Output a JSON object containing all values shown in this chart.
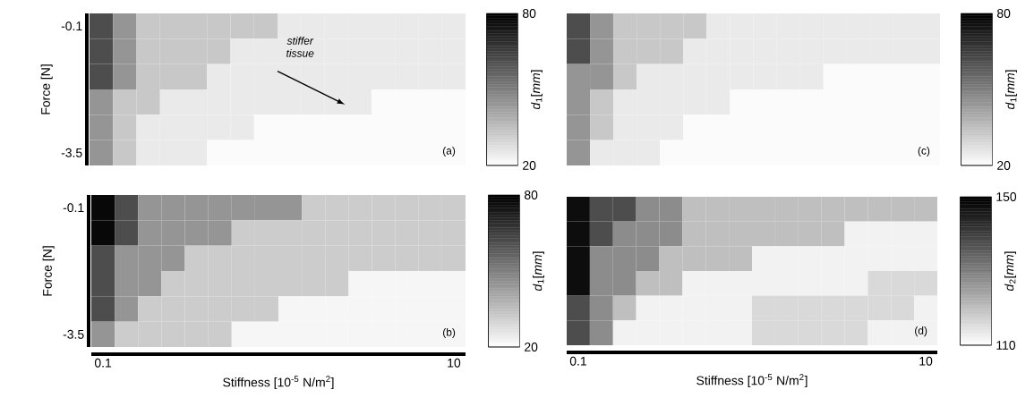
{
  "chart_data": [
    {
      "type": "heatmap",
      "ylabel": "Force [N]",
      "clabel": "*d*$_{1}$[*mm*]",
      "tick_labels": "y",
      "categories": [
        "0.1",
        null,
        null,
        null,
        null,
        null,
        null,
        null,
        null,
        null,
        null,
        null,
        null,
        null,
        null,
        "10"
      ],
      "y_categories": [
        "-0.1",
        null,
        null,
        null,
        null,
        "-3.5"
      ],
      "cells": [
        [
          62,
          45,
          33,
          33,
          33,
          33,
          33,
          33,
          25,
          25,
          25,
          25,
          25,
          25,
          25,
          25
        ],
        [
          62,
          45,
          33,
          33,
          33,
          33,
          25,
          25,
          25,
          25,
          25,
          25,
          25,
          25,
          25,
          25
        ],
        [
          62,
          45,
          33,
          33,
          33,
          25,
          25,
          25,
          25,
          25,
          25,
          25,
          25,
          25,
          25,
          25
        ],
        [
          45,
          33,
          33,
          25,
          25,
          25,
          25,
          25,
          25,
          25,
          25,
          25,
          21,
          21,
          21,
          21
        ],
        [
          45,
          33,
          25,
          25,
          25,
          25,
          25,
          21,
          21,
          21,
          21,
          21,
          21,
          21,
          21,
          21
        ],
        [
          45,
          33,
          25,
          25,
          25,
          21,
          21,
          21,
          21,
          21,
          21,
          21,
          21,
          21,
          21,
          21
        ]
      ],
      "clim": [
        20,
        80
      ],
      "cticks": [
        20,
        80
      ],
      "annotations": [
        "stiffer tissue",
        "(a)"
      ]
    },
    {
      "type": "heatmap",
      "clabel": "*d*$_{1}$[*mm*]",
      "tick_labels": false,
      "categories": [
        "0.1",
        null,
        null,
        null,
        null,
        null,
        null,
        null,
        null,
        null,
        null,
        null,
        null,
        null,
        null,
        "10"
      ],
      "y_categories": [
        "-0.1",
        null,
        null,
        null,
        null,
        "-3.5"
      ],
      "cells": [
        [
          62,
          45,
          33,
          33,
          33,
          33,
          25,
          25,
          25,
          25,
          25,
          25,
          25,
          25,
          25,
          25
        ],
        [
          62,
          45,
          33,
          33,
          33,
          25,
          25,
          25,
          25,
          25,
          25,
          25,
          25,
          25,
          25,
          25
        ],
        [
          45,
          45,
          33,
          25,
          25,
          25,
          25,
          25,
          25,
          25,
          25,
          21,
          21,
          21,
          21,
          21
        ],
        [
          45,
          33,
          25,
          25,
          25,
          25,
          25,
          21,
          21,
          21,
          21,
          21,
          21,
          21,
          21,
          21
        ],
        [
          45,
          33,
          25,
          25,
          25,
          21,
          21,
          21,
          21,
          21,
          21,
          21,
          21,
          21,
          21,
          21
        ],
        [
          45,
          25,
          25,
          25,
          21,
          21,
          21,
          21,
          21,
          21,
          21,
          21,
          21,
          21,
          21,
          21
        ]
      ],
      "clim": [
        20,
        80
      ],
      "cticks": [
        20,
        80
      ],
      "annotations": [
        "(c)"
      ]
    },
    {
      "type": "heatmap",
      "ylabel": "Force [N]",
      "xlabel": "Stiffness [10$^{-5}$ N/m$^{2}$]",
      "clabel": "*d*$_{1}$[*mm*]",
      "categories": [
        "0.1",
        null,
        null,
        null,
        null,
        null,
        null,
        null,
        null,
        null,
        null,
        null,
        null,
        null,
        null,
        "10"
      ],
      "y_categories": [
        "-0.1",
        null,
        null,
        null,
        null,
        "-3.5"
      ],
      "cells": [
        [
          78,
          62,
          45,
          45,
          45,
          45,
          45,
          45,
          45,
          32,
          32,
          32,
          32,
          32,
          32,
          32
        ],
        [
          78,
          62,
          45,
          45,
          45,
          45,
          32,
          32,
          32,
          32,
          32,
          32,
          32,
          32,
          32,
          32
        ],
        [
          62,
          45,
          45,
          45,
          32,
          32,
          32,
          32,
          32,
          32,
          32,
          32,
          32,
          32,
          32,
          32
        ],
        [
          62,
          45,
          45,
          32,
          32,
          32,
          32,
          32,
          32,
          32,
          32,
          22,
          22,
          22,
          22,
          22
        ],
        [
          62,
          45,
          32,
          32,
          32,
          32,
          32,
          32,
          22,
          22,
          22,
          22,
          22,
          22,
          22,
          22
        ],
        [
          45,
          32,
          32,
          32,
          32,
          32,
          22,
          22,
          22,
          22,
          22,
          22,
          22,
          22,
          22,
          22
        ]
      ],
      "clim": [
        20,
        80
      ],
      "cticks": [
        20,
        80
      ],
      "annotations": [
        "(b)"
      ]
    },
    {
      "type": "heatmap",
      "xlabel": "Stiffness [10$^{-5}$ N/m$^{2}$]",
      "clabel": "*d*$_{2}$[*mm*]",
      "tick_labels": "x",
      "categories": [
        "0.1",
        null,
        null,
        null,
        null,
        null,
        null,
        null,
        null,
        null,
        null,
        null,
        null,
        null,
        null,
        "10"
      ],
      "y_categories": [
        "-0.1",
        null,
        null,
        null,
        null,
        "-3.5"
      ],
      "cells": [
        [
          148,
          138,
          138,
          128,
          128,
          120,
          120,
          120,
          120,
          120,
          120,
          120,
          120,
          120,
          120,
          120
        ],
        [
          148,
          138,
          128,
          128,
          128,
          120,
          120,
          120,
          120,
          120,
          120,
          120,
          112,
          112,
          112,
          112
        ],
        [
          148,
          128,
          128,
          128,
          120,
          120,
          120,
          120,
          112,
          112,
          112,
          112,
          112,
          112,
          112,
          112
        ],
        [
          148,
          128,
          128,
          120,
          120,
          112,
          112,
          112,
          112,
          112,
          112,
          112,
          112,
          116,
          116,
          116
        ],
        [
          138,
          128,
          120,
          112,
          112,
          112,
          112,
          112,
          116,
          116,
          116,
          116,
          116,
          116,
          116,
          112
        ],
        [
          138,
          128,
          112,
          112,
          112,
          112,
          112,
          112,
          116,
          116,
          116,
          116,
          116,
          112,
          112,
          112
        ]
      ],
      "clim": [
        110,
        150
      ],
      "cticks": [
        110,
        150
      ],
      "annotations": [
        "(d)"
      ]
    }
  ]
}
